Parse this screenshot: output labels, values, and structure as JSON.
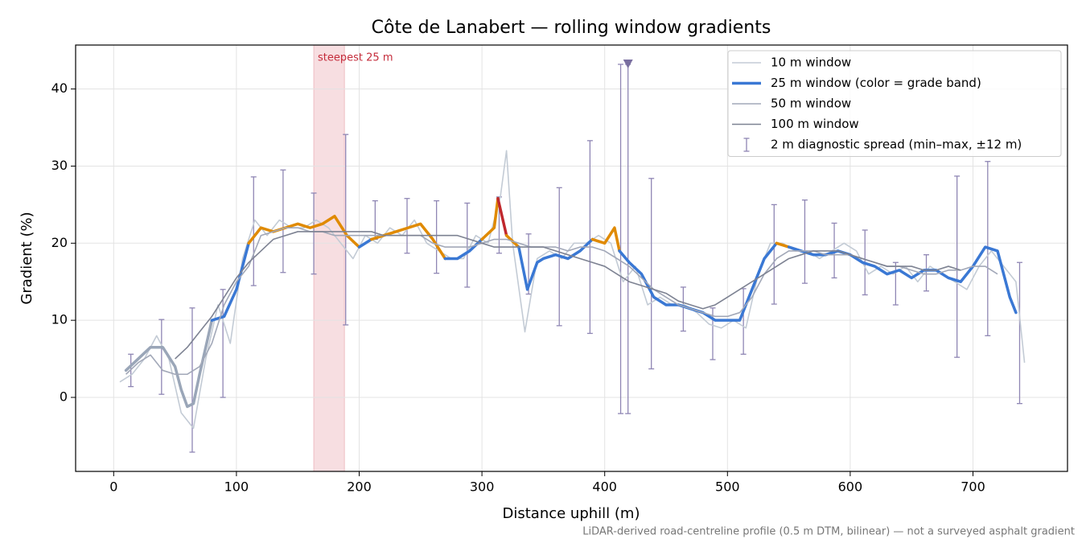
{
  "chart_data": {
    "type": "line",
    "title": "Côte de Lanabert — rolling window gradients",
    "xlabel": "Distance uphill (m)",
    "ylabel": "Gradient (%)",
    "footnote": "LiDAR-derived road-centreline profile (0.5 m DTM, bilinear) — not a surveyed asphalt gradient",
    "xlim": [
      -31,
      777
    ],
    "ylim": [
      -9.6,
      45.7
    ],
    "xticks": [
      0,
      100,
      200,
      300,
      400,
      500,
      600,
      700
    ],
    "yticks": [
      0,
      10,
      20,
      30,
      40
    ],
    "grid": true,
    "legend": "upper right",
    "highlight": {
      "x": [
        163,
        188
      ],
      "label": "steepest 25 m",
      "color": "#e8a0a8",
      "label_color": "#c42b3a"
    },
    "series": [
      {
        "name": "10 m window",
        "color": "#c3cbd5",
        "x": [
          5,
          15,
          25,
          35,
          45,
          55,
          65,
          75,
          85,
          95,
          105,
          115,
          125,
          135,
          145,
          155,
          165,
          175,
          185,
          195,
          205,
          215,
          225,
          235,
          245,
          255,
          265,
          275,
          285,
          295,
          305,
          315,
          320,
          325,
          335,
          345,
          355,
          365,
          375,
          385,
          395,
          405,
          415,
          425,
          435,
          445,
          455,
          465,
          475,
          485,
          495,
          505,
          515,
          525,
          535,
          545,
          555,
          565,
          575,
          585,
          595,
          605,
          615,
          625,
          635,
          645,
          655,
          665,
          675,
          685,
          695,
          705,
          715,
          725,
          735,
          742
        ],
        "values": [
          2,
          3,
          5,
          8,
          5,
          -2,
          -4,
          5,
          12,
          7,
          18,
          23,
          21,
          23,
          22,
          22,
          23,
          22,
          20,
          18,
          21,
          20,
          22,
          21,
          23,
          20,
          19,
          18,
          18,
          21,
          20,
          26,
          32,
          20,
          8.5,
          18,
          19,
          18,
          20,
          20,
          21,
          20,
          15,
          17,
          12,
          13,
          12,
          12,
          11,
          9.5,
          9,
          10,
          9,
          16,
          20,
          20,
          19,
          19,
          18,
          19,
          20,
          19,
          16,
          17,
          16,
          17,
          15,
          17,
          16,
          15,
          14,
          17,
          19,
          17,
          15,
          4.5
        ]
      },
      {
        "name": "25 m window (color = grade band)",
        "color": "#3a78d4",
        "x": [
          10,
          20,
          30,
          40,
          50,
          55,
          60,
          65,
          70,
          80,
          90,
          100,
          110,
          120,
          130,
          140,
          150,
          160,
          170,
          180,
          190,
          200,
          210,
          220,
          230,
          240,
          250,
          260,
          270,
          280,
          290,
          300,
          310,
          313,
          320,
          330,
          337,
          345,
          350,
          360,
          370,
          380,
          390,
          400,
          408,
          412,
          420,
          430,
          440,
          450,
          460,
          470,
          480,
          490,
          500,
          510,
          520,
          530,
          540,
          550,
          560,
          570,
          580,
          590,
          600,
          610,
          620,
          630,
          640,
          650,
          660,
          670,
          680,
          690,
          700,
          710,
          720,
          730,
          735
        ],
        "values": [
          3.5,
          5,
          6.5,
          6.5,
          4,
          1,
          -1.2,
          -0.8,
          3,
          10,
          10.5,
          14,
          20,
          22,
          21.5,
          22,
          22.5,
          22,
          22.5,
          23.5,
          21,
          19.5,
          20.5,
          21,
          21.5,
          22,
          22.5,
          20.5,
          18,
          18,
          19,
          20.5,
          22,
          25.8,
          21,
          19.5,
          14,
          17.5,
          18,
          18.5,
          18,
          19,
          20.5,
          20,
          22,
          19,
          17.5,
          16,
          13,
          12,
          12,
          11.5,
          11,
          10,
          10,
          10,
          14,
          18,
          20,
          19.5,
          19,
          18.5,
          18.5,
          19,
          18.5,
          17.5,
          17,
          16,
          16.5,
          15.5,
          16.5,
          16.5,
          15.5,
          15,
          17,
          19.5,
          19,
          13,
          11
        ],
        "colors": [
          "#9aa6b8",
          "#9aa6b8",
          "#9aa6b8",
          "#9aa6b8",
          "#9aa6b8",
          "#9aa6b8",
          "#9aa6b8",
          "#9aa6b8",
          "#9aa6b8",
          "#3a78d4",
          "#3a78d4",
          "#3a78d4",
          "#e08a00",
          "#e08a00",
          "#e08a00",
          "#e08a00",
          "#e08a00",
          "#e08a00",
          "#e08a00",
          "#e08a00",
          "#e08a00",
          "#3a78d4",
          "#e08a00",
          "#e08a00",
          "#e08a00",
          "#e08a00",
          "#e08a00",
          "#e08a00",
          "#3a78d4",
          "#3a78d4",
          "#3a78d4",
          "#e08a00",
          "#e08a00",
          "#c0282d",
          "#e08a00",
          "#3a78d4",
          "#3a78d4",
          "#3a78d4",
          "#3a78d4",
          "#3a78d4",
          "#3a78d4",
          "#3a78d4",
          "#e08a00",
          "#e08a00",
          "#e08a00",
          "#3a78d4",
          "#3a78d4",
          "#3a78d4",
          "#3a78d4",
          "#3a78d4",
          "#3a78d4",
          "#3a78d4",
          "#3a78d4",
          "#3a78d4",
          "#3a78d4",
          "#3a78d4",
          "#3a78d4",
          "#3a78d4",
          "#e08a00",
          "#3a78d4",
          "#3a78d4",
          "#3a78d4",
          "#3a78d4",
          "#3a78d4",
          "#3a78d4",
          "#3a78d4",
          "#3a78d4",
          "#3a78d4",
          "#3a78d4",
          "#3a78d4",
          "#3a78d4",
          "#3a78d4",
          "#3a78d4",
          "#3a78d4",
          "#3a78d4",
          "#3a78d4",
          "#3a78d4",
          "#3a78d4",
          "#3a78d4",
          "#3a78d4"
        ]
      },
      {
        "name": "50 m window",
        "color": "#a2a8b8",
        "x": [
          10,
          20,
          30,
          40,
          50,
          60,
          70,
          80,
          90,
          100,
          110,
          120,
          130,
          140,
          150,
          160,
          170,
          180,
          190,
          200,
          210,
          220,
          230,
          240,
          250,
          260,
          270,
          280,
          290,
          300,
          310,
          320,
          330,
          340,
          350,
          360,
          370,
          380,
          390,
          400,
          410,
          420,
          430,
          440,
          450,
          460,
          470,
          480,
          490,
          500,
          510,
          520,
          530,
          540,
          550,
          560,
          570,
          580,
          590,
          600,
          610,
          620,
          630,
          640,
          650,
          660,
          670,
          680,
          690,
          700,
          710,
          720
        ],
        "values": [
          3,
          4.5,
          5.5,
          3.5,
          3,
          3,
          4,
          7,
          12,
          15,
          17,
          21,
          21.5,
          22,
          22,
          21.5,
          21.5,
          21,
          21,
          21,
          21,
          21,
          21,
          21,
          21,
          20,
          19.5,
          19.5,
          19.5,
          20,
          20.5,
          20.5,
          20,
          19.5,
          19.5,
          19.5,
          19,
          19.5,
          19.5,
          19,
          18,
          17,
          15.5,
          14,
          13,
          12,
          11.5,
          11,
          10.5,
          10.5,
          11,
          13,
          16,
          18,
          19,
          19,
          19,
          18.5,
          18.5,
          18.5,
          18,
          17.5,
          17,
          17,
          16.5,
          16,
          16,
          16.5,
          16.5,
          17,
          17,
          16
        ]
      },
      {
        "name": "100 m window",
        "color": "#7d8292",
        "x": [
          50,
          60,
          70,
          80,
          90,
          100,
          110,
          120,
          130,
          140,
          150,
          160,
          170,
          180,
          190,
          200,
          210,
          220,
          230,
          240,
          250,
          260,
          270,
          280,
          290,
          300,
          310,
          320,
          330,
          340,
          350,
          360,
          370,
          380,
          390,
          400,
          410,
          420,
          430,
          440,
          450,
          460,
          470,
          480,
          490,
          500,
          510,
          520,
          530,
          540,
          550,
          560,
          570,
          580,
          590,
          600,
          610,
          620,
          630,
          640,
          650,
          660,
          670,
          680,
          690
        ],
        "values": [
          5,
          6.5,
          8.5,
          10.5,
          13,
          15.5,
          17.5,
          19,
          20.5,
          21,
          21.5,
          21.5,
          21.5,
          21.5,
          21.5,
          21.5,
          21.5,
          21,
          21,
          21,
          21,
          21,
          21,
          21,
          20.5,
          20,
          19.5,
          19.5,
          19.5,
          19.5,
          19.5,
          19,
          18.5,
          18,
          17.5,
          17,
          16,
          15,
          14.5,
          14,
          13.5,
          12.5,
          12,
          11.5,
          12,
          13,
          14,
          15,
          16,
          17,
          18,
          18.5,
          19,
          19,
          19,
          18.5,
          18,
          17.5,
          17,
          17,
          17,
          16.5,
          16.5,
          17,
          16.5
        ]
      }
    ],
    "errorbars": {
      "name": "2 m diagnostic spread (min–max, ±12 m)",
      "color": "#8f86b4",
      "x": [
        14,
        39,
        64,
        89,
        114,
        138,
        163,
        189,
        213,
        239,
        263,
        288,
        314,
        338,
        363,
        388,
        413,
        419,
        438,
        464,
        488,
        513,
        538,
        563,
        587,
        612,
        637,
        662,
        687,
        712,
        738
      ],
      "lows": [
        1.4,
        0.4,
        -7.1,
        0,
        14.5,
        16.2,
        16,
        9.4,
        20.5,
        18.7,
        16.1,
        14.3,
        18.7,
        13.4,
        9.3,
        8.3,
        -2.1,
        -2.1,
        3.7,
        8.6,
        4.9,
        5.6,
        12.1,
        14.8,
        15.5,
        13.3,
        12,
        13.8,
        5.2,
        8,
        -0.8
      ],
      "highs": [
        5.6,
        10.1,
        11.6,
        14,
        28.6,
        29.5,
        26.5,
        34.1,
        25.5,
        25.8,
        25.5,
        25.2,
        26,
        21.2,
        27.2,
        33.3,
        43.2,
        43.2,
        28.4,
        14.3,
        11.6,
        14.1,
        25,
        25.6,
        22.6,
        21.7,
        17.5,
        18.5,
        28.7,
        30.6,
        17.5
      ]
    },
    "marker": {
      "x": 419,
      "y": 43.2,
      "color": "#7a6fa0"
    }
  }
}
